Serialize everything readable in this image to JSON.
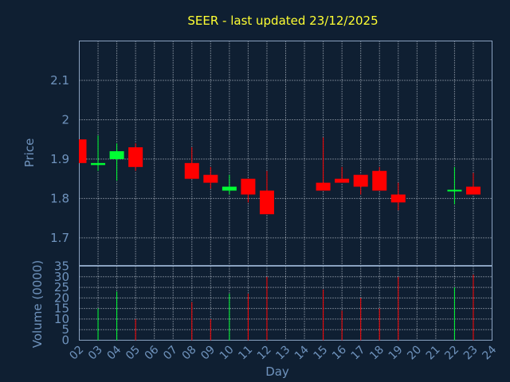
{
  "chart_data": {
    "type": "candlestick",
    "title": "SEER - last updated 23/12/2025",
    "price_panel": {
      "ylabel": "Price",
      "yticks": [
        "1.7",
        "1.8",
        "1.9",
        "2",
        "2.1"
      ],
      "ylim": [
        1.63,
        2.2
      ]
    },
    "volume_panel": {
      "ylabel": "Volume (0000)",
      "yticks": [
        "0",
        "5",
        "10",
        "15",
        "20",
        "25",
        "30",
        "35"
      ],
      "ylim": [
        0,
        35
      ]
    },
    "xlabel": "Day",
    "x_ticks": [
      "02",
      "03",
      "04",
      "05",
      "06",
      "07",
      "08",
      "09",
      "10",
      "11",
      "12",
      "13",
      "14",
      "15",
      "16",
      "17",
      "18",
      "19",
      "20",
      "21",
      "22",
      "23",
      "24"
    ],
    "colors": {
      "up": "#00ff33",
      "down": "#ff0000",
      "background": "#0f1f32",
      "title": "#ffff33",
      "axis_text": "#6f93bd"
    },
    "candles": [
      {
        "day": "02",
        "open": 1.95,
        "high": 1.95,
        "low": 1.89,
        "close": 1.89,
        "volume": 0
      },
      {
        "day": "03",
        "open": 1.885,
        "high": 1.96,
        "low": 1.87,
        "close": 1.89,
        "volume": 15
      },
      {
        "day": "04",
        "open": 1.9,
        "high": 1.94,
        "low": 1.845,
        "close": 1.92,
        "volume": 23
      },
      {
        "day": "05",
        "open": 1.93,
        "high": 1.94,
        "low": 1.87,
        "close": 1.88,
        "volume": 10
      },
      {
        "day": "08",
        "open": 1.89,
        "high": 1.93,
        "low": 1.85,
        "close": 1.85,
        "volume": 18
      },
      {
        "day": "09",
        "open": 1.86,
        "high": 1.88,
        "low": 1.825,
        "close": 1.84,
        "volume": 10
      },
      {
        "day": "10",
        "open": 1.82,
        "high": 1.86,
        "low": 1.81,
        "close": 1.83,
        "volume": 22
      },
      {
        "day": "11",
        "open": 1.85,
        "high": 1.85,
        "low": 1.79,
        "close": 1.81,
        "volume": 22
      },
      {
        "day": "12",
        "open": 1.82,
        "high": 1.87,
        "low": 1.76,
        "close": 1.76,
        "volume": 30
      },
      {
        "day": "15",
        "open": 1.84,
        "high": 1.955,
        "low": 1.82,
        "close": 1.82,
        "volume": 24
      },
      {
        "day": "16",
        "open": 1.85,
        "high": 1.88,
        "low": 1.84,
        "close": 1.84,
        "volume": 14
      },
      {
        "day": "17",
        "open": 1.86,
        "high": 1.86,
        "low": 1.81,
        "close": 1.83,
        "volume": 20
      },
      {
        "day": "18",
        "open": 1.87,
        "high": 1.88,
        "low": 1.82,
        "close": 1.82,
        "volume": 15
      },
      {
        "day": "19",
        "open": 1.81,
        "high": 1.84,
        "low": 1.77,
        "close": 1.79,
        "volume": 30
      },
      {
        "day": "22",
        "open": 1.82,
        "high": 1.88,
        "low": 1.785,
        "close": 1.82,
        "volume": 25
      },
      {
        "day": "23",
        "open": 1.83,
        "high": 1.865,
        "low": 1.81,
        "close": 1.81,
        "volume": 31
      }
    ]
  }
}
